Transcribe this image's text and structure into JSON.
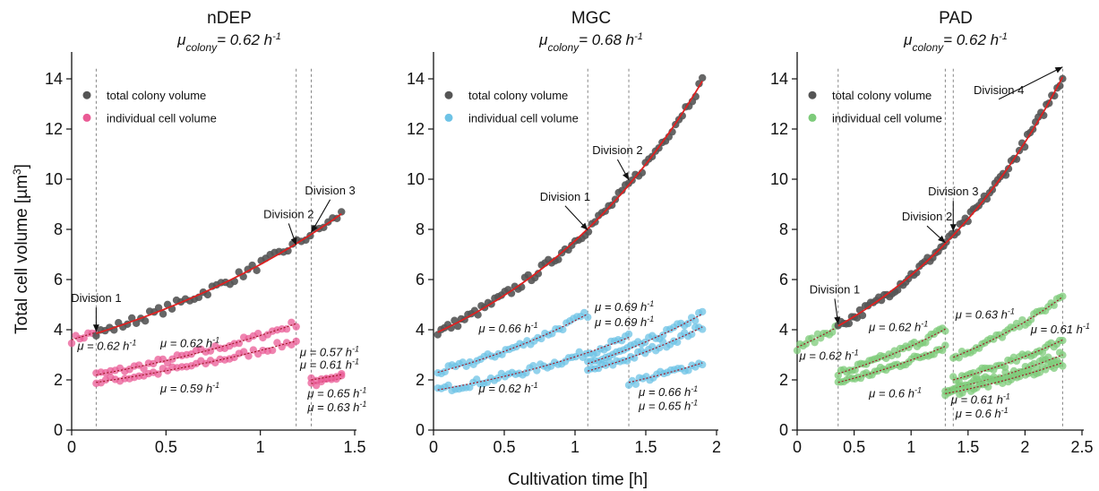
{
  "figure": {
    "xlabel": "Cultivation time [h]",
    "ylabel": "Total cell volume [µm",
    "ylabel_sup": "3",
    "ylabel_end": "]"
  },
  "chart_data": [
    {
      "type": "scatter",
      "title": "nDEP",
      "subtitle_mu": "μ",
      "subtitle_sub": "colony",
      "subtitle_value": "= 0.62 h",
      "subtitle_exp": "-1",
      "xlim": [
        0,
        1.5
      ],
      "ylim": [
        0,
        15
      ],
      "xticks": [
        "0",
        "0.5",
        "1",
        "1.5"
      ],
      "xtick_values": [
        0,
        0.5,
        1,
        1.5
      ],
      "yticks": [
        "0",
        "2",
        "4",
        "6",
        "8",
        "10",
        "12",
        "14"
      ],
      "ytick_values": [
        0,
        2,
        4,
        6,
        8,
        10,
        12,
        14
      ],
      "legend": [
        "total colony volume",
        "individual cell volume"
      ],
      "colors": {
        "colony": "#555555",
        "cell": "#ea5b95",
        "fit": "#e02020"
      },
      "colony_series": {
        "t0": 0.13,
        "t1": 1.43,
        "v0": 3.85,
        "mu": 0.62
      },
      "cell_series": [
        {
          "t0": 0.0,
          "t1": 0.13,
          "v0": 3.6,
          "mu": 0.62,
          "name": "pre"
        },
        {
          "t0": 0.13,
          "t1": 1.19,
          "v0": 2.2,
          "mu": 0.62,
          "name": "a"
        },
        {
          "t0": 0.13,
          "t1": 1.19,
          "v0": 1.9,
          "mu": 0.59,
          "name": "b"
        },
        {
          "t0": 1.27,
          "t1": 1.43,
          "v0": 1.85,
          "mu": 0.65,
          "name": "c"
        },
        {
          "t0": 1.27,
          "t1": 1.43,
          "v0": 2.0,
          "mu": 0.63,
          "name": "d"
        }
      ],
      "division_lines": [
        0.13,
        1.19,
        1.27
      ],
      "annotations": [
        {
          "text": "Division 1",
          "x": 0.13,
          "y": 3.85,
          "tx": 0.13,
          "ty": 5.1
        },
        {
          "text": "Division 2",
          "x": 1.19,
          "y": 7.3,
          "tx": 1.15,
          "ty": 8.45
        },
        {
          "text": "Division 3",
          "x": 1.27,
          "y": 7.8,
          "tx": 1.37,
          "ty": 9.4
        }
      ],
      "rates": [
        {
          "text": "μ = 0.62 h",
          "x": 0.03,
          "y": 3.2
        },
        {
          "text": "μ = 0.62 h",
          "x": 0.47,
          "y": 3.3
        },
        {
          "text": "μ = 0.59 h",
          "x": 0.47,
          "y": 1.5
        },
        {
          "text": "μ = 0.57 h",
          "x": 1.21,
          "y": 2.95
        },
        {
          "text": "μ = 0.61 h",
          "x": 1.21,
          "y": 2.45
        },
        {
          "text": "μ = 0.65 h",
          "x": 1.25,
          "y": 1.3
        },
        {
          "text": "μ = 0.63 h",
          "x": 1.25,
          "y": 0.75
        }
      ]
    },
    {
      "type": "scatter",
      "title": "MGC",
      "subtitle_mu": "μ",
      "subtitle_sub": "colony",
      "subtitle_value": "= 0.68 h",
      "subtitle_exp": "-1",
      "xlim": [
        0,
        2
      ],
      "ylim": [
        0,
        15
      ],
      "xticks": [
        "0",
        "0.5",
        "1",
        "1.5",
        "2"
      ],
      "xtick_values": [
        0,
        0.5,
        1,
        1.5,
        2
      ],
      "yticks": [
        "0",
        "2",
        "4",
        "6",
        "8",
        "10",
        "12",
        "14"
      ],
      "ytick_values": [
        0,
        2,
        4,
        6,
        8,
        10,
        12,
        14
      ],
      "legend": [
        "total colony volume",
        "individual cell volume"
      ],
      "colors": {
        "colony": "#555555",
        "cell": "#6ec3e6",
        "fit": "#e02020"
      },
      "colony_series": {
        "t0": 0.03,
        "t1": 1.9,
        "v0": 3.9,
        "mu": 0.68
      },
      "cell_series": [
        {
          "t0": 0.03,
          "t1": 1.09,
          "v0": 2.3,
          "mu": 0.66,
          "name": "a"
        },
        {
          "t0": 0.03,
          "t1": 1.38,
          "v0": 1.6,
          "mu": 0.62,
          "name": "b"
        },
        {
          "t0": 1.09,
          "t1": 1.9,
          "v0": 2.65,
          "mu": 0.69,
          "name": "c"
        },
        {
          "t0": 1.09,
          "t1": 1.9,
          "v0": 2.35,
          "mu": 0.69,
          "name": "d"
        },
        {
          "t0": 1.38,
          "t1": 1.9,
          "v0": 1.9,
          "mu": 0.66,
          "name": "e"
        }
      ],
      "division_lines": [
        1.09,
        1.38
      ],
      "annotations": [
        {
          "text": "Division 1",
          "x": 1.09,
          "y": 7.9,
          "tx": 0.93,
          "ty": 9.15
        },
        {
          "text": "Division 2",
          "x": 1.38,
          "y": 9.9,
          "tx": 1.3,
          "ty": 11.0
        }
      ],
      "rates": [
        {
          "text": "μ = 0.66 h",
          "x": 0.32,
          "y": 3.9
        },
        {
          "text": "μ = 0.62 h",
          "x": 0.32,
          "y": 1.5
        },
        {
          "text": "μ = 0.69 h",
          "x": 1.14,
          "y": 4.75
        },
        {
          "text": "μ = 0.69 h",
          "x": 1.14,
          "y": 4.15
        },
        {
          "text": "μ = 0.66 h",
          "x": 1.45,
          "y": 1.35
        },
        {
          "text": "μ = 0.65 h",
          "x": 1.45,
          "y": 0.8
        }
      ]
    },
    {
      "type": "scatter",
      "title": "PAD",
      "subtitle_mu": "μ",
      "subtitle_sub": "colony",
      "subtitle_value": "= 0.62 h",
      "subtitle_exp": "-1",
      "xlim": [
        0,
        2.5
      ],
      "ylim": [
        0,
        15
      ],
      "xticks": [
        "0",
        "0.5",
        "1",
        "1.5",
        "2",
        "2.5"
      ],
      "xtick_values": [
        0,
        0.5,
        1,
        1.5,
        2,
        2.5
      ],
      "yticks": [
        "0",
        "2",
        "4",
        "6",
        "8",
        "10",
        "12",
        "14"
      ],
      "ytick_values": [
        0,
        2,
        4,
        6,
        8,
        10,
        12,
        14
      ],
      "legend": [
        "total colony volume",
        "individual cell volume"
      ],
      "colors": {
        "colony": "#555555",
        "cell": "#7dcb7a",
        "fit": "#e02020"
      },
      "colony_series": {
        "t0": 0.36,
        "t1": 2.33,
        "v0": 4.15,
        "mu": 0.62
      },
      "cell_series": [
        {
          "t0": 0.0,
          "t1": 0.36,
          "v0": 3.3,
          "mu": 0.62,
          "name": "pre"
        },
        {
          "t0": 0.36,
          "t1": 1.3,
          "v0": 2.25,
          "mu": 0.62,
          "name": "a"
        },
        {
          "t0": 0.36,
          "t1": 1.3,
          "v0": 1.9,
          "mu": 0.6,
          "name": "b"
        },
        {
          "t0": 1.37,
          "t1": 2.33,
          "v0": 2.9,
          "mu": 0.63,
          "name": "c"
        },
        {
          "t0": 1.37,
          "t1": 2.33,
          "v0": 2.0,
          "mu": 0.61,
          "name": "d"
        },
        {
          "t0": 1.3,
          "t1": 2.33,
          "v0": 1.6,
          "mu": 0.61,
          "name": "e"
        },
        {
          "t0": 1.3,
          "t1": 2.33,
          "v0": 1.45,
          "mu": 0.6,
          "name": "f"
        }
      ],
      "division_lines": [
        0.36,
        1.3,
        1.37,
        2.33
      ],
      "annotations": [
        {
          "text": "Division 1",
          "x": 0.36,
          "y": 4.15,
          "tx": 0.33,
          "ty": 5.45
        },
        {
          "text": "Division 2",
          "x": 1.3,
          "y": 7.4,
          "tx": 1.14,
          "ty": 8.35
        },
        {
          "text": "Division 3",
          "x": 1.37,
          "y": 7.85,
          "tx": 1.37,
          "ty": 9.35
        },
        {
          "text": "Division 4",
          "x": 2.33,
          "y": 14.4,
          "tx": 1.77,
          "ty": 13.4
        }
      ],
      "rates": [
        {
          "text": "μ = 0.62 h",
          "x": 0.02,
          "y": 2.8
        },
        {
          "text": "μ = 0.62 h",
          "x": 0.63,
          "y": 3.95
        },
        {
          "text": "μ = 0.6 h",
          "x": 0.63,
          "y": 1.3
        },
        {
          "text": "μ = 0.63 h",
          "x": 1.39,
          "y": 4.45
        },
        {
          "text": "μ = 0.61 h",
          "x": 2.05,
          "y": 3.85
        },
        {
          "text": "μ = 0.61 h",
          "x": 1.35,
          "y": 1.05
        },
        {
          "text": "μ = 0.6 h",
          "x": 1.39,
          "y": 0.5
        }
      ]
    }
  ]
}
